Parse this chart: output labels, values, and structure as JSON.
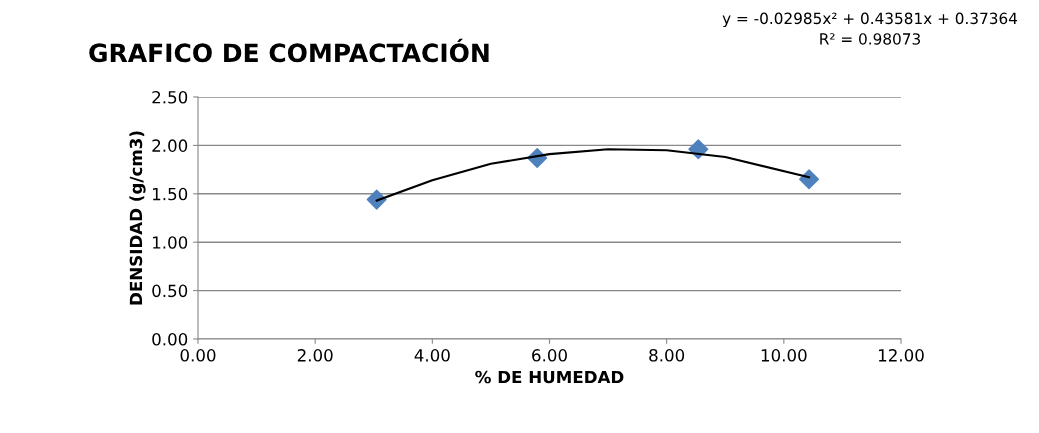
{
  "chart_data": {
    "type": "scatter",
    "title": "GRAFICO DE COMPACTACIÓN",
    "xlabel": "% DE HUMEDAD",
    "ylabel": "DENSIDAD (g/cm3)",
    "annotations": [
      "y = -0.02985x² + 0.43581x + 0.37364\nR² = 0.98073"
    ],
    "x": [
      3.05,
      5.79,
      8.54,
      10.43
    ],
    "series": [
      {
        "color": "#4f81bd",
        "marker": "diamond",
        "values": [
          1.44,
          1.87,
          1.96,
          1.65
        ]
      },
      {
        "type": "line",
        "color": "#000000",
        "marker": "none",
        "x": [
          3.05,
          4,
          5,
          6,
          7,
          8,
          9,
          10.43
        ],
        "values": [
          1.43,
          1.64,
          1.81,
          1.91,
          1.96,
          1.95,
          1.88,
          1.67
        ]
      }
    ],
    "xlim": [
      0,
      12
    ],
    "ylim": [
      0,
      2.5
    ],
    "xticks": [
      {
        "value": 0,
        "label": "0.00"
      },
      {
        "value": 2,
        "label": "2.00"
      },
      {
        "value": 4,
        "label": "4.00"
      },
      {
        "value": 6,
        "label": "6.00"
      },
      {
        "value": 8,
        "label": "8.00"
      },
      {
        "value": 10,
        "label": "10.00"
      },
      {
        "value": 12,
        "label": "12.00"
      }
    ],
    "yticks": [
      {
        "value": 0,
        "label": "0.00"
      },
      {
        "value": 0.5,
        "label": "0.50"
      },
      {
        "value": 1,
        "label": "1.00"
      },
      {
        "value": 1.5,
        "label": "1.50"
      },
      {
        "value": 2,
        "label": "2.00"
      },
      {
        "value": 2.5,
        "label": "2.50"
      }
    ],
    "grid": "y"
  }
}
